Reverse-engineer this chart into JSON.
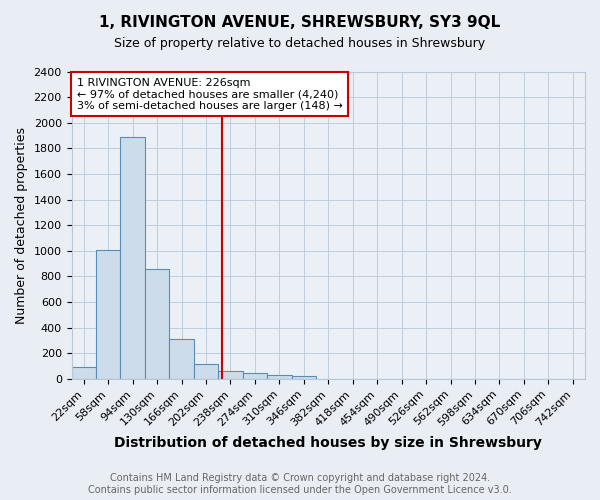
{
  "title": "1, RIVINGTON AVENUE, SHREWSBURY, SY3 9QL",
  "subtitle": "Size of property relative to detached houses in Shrewsbury",
  "xlabel": "Distribution of detached houses by size in Shrewsbury",
  "ylabel": "Number of detached properties",
  "bin_labels": [
    "22sqm",
    "58sqm",
    "94sqm",
    "130sqm",
    "166sqm",
    "202sqm",
    "238sqm",
    "274sqm",
    "310sqm",
    "346sqm",
    "382sqm",
    "418sqm",
    "454sqm",
    "490sqm",
    "526sqm",
    "562sqm",
    "598sqm",
    "634sqm",
    "670sqm",
    "706sqm",
    "742sqm"
  ],
  "bar_values": [
    90,
    1010,
    1890,
    860,
    310,
    120,
    60,
    45,
    30,
    20,
    0,
    0,
    0,
    0,
    0,
    0,
    0,
    0,
    0,
    0,
    0
  ],
  "bar_color": "#cddcea",
  "bar_edgecolor": "#5a8db5",
  "vline_color": "#cc0000",
  "annotation_text": "1 RIVINGTON AVENUE: 226sqm\n← 97% of detached houses are smaller (4,240)\n3% of semi-detached houses are larger (148) →",
  "annotation_box_color": "#ffffff",
  "annotation_box_edgecolor": "#cc0000",
  "ylim": [
    0,
    2400
  ],
  "yticks": [
    0,
    200,
    400,
    600,
    800,
    1000,
    1200,
    1400,
    1600,
    1800,
    2000,
    2200,
    2400
  ],
  "footer_line1": "Contains HM Land Registry data © Crown copyright and database right 2024.",
  "footer_line2": "Contains public sector information licensed under the Open Government Licence v3.0.",
  "bg_color": "#e8eef4",
  "plot_bg_color": "#eaf0f6",
  "grid_color": "#b8c8d8",
  "title_fontsize": 11,
  "subtitle_fontsize": 9,
  "xlabel_fontsize": 10,
  "ylabel_fontsize": 9,
  "tick_fontsize": 8,
  "annotation_fontsize": 8,
  "footer_fontsize": 7
}
